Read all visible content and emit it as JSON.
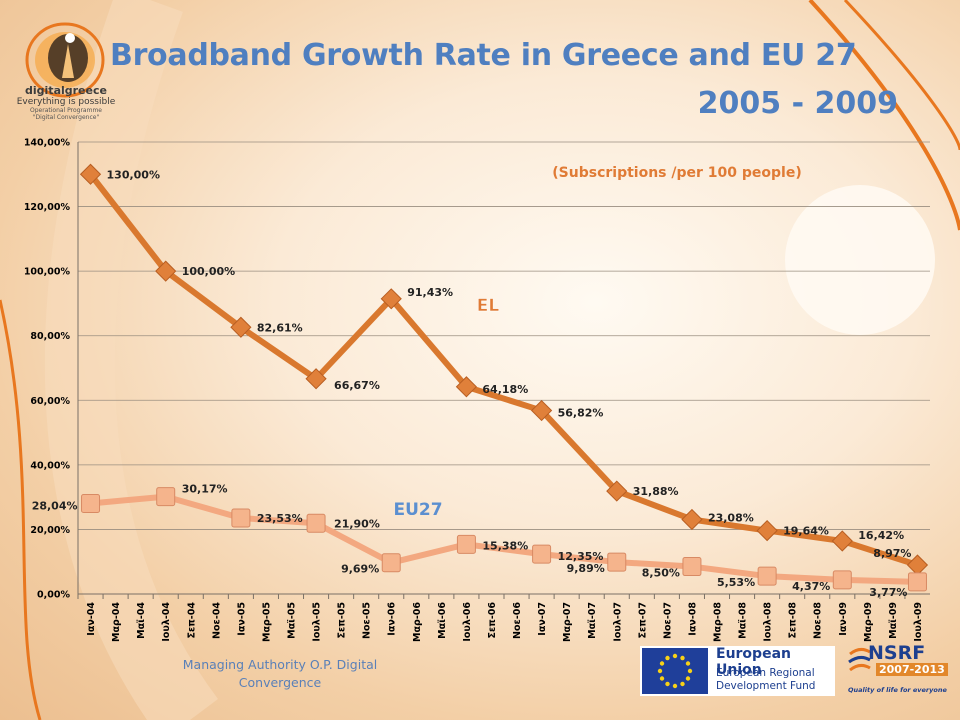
{
  "header": {
    "title_line1": "Broadband Growth Rate in Greece and EU 27",
    "title_line2": "2005 - 2009",
    "title_color": "#4f7fc0"
  },
  "logo": {
    "brand": "digitalgreece",
    "tagline": "Everything is possible",
    "programme_line1": "Operational Programme",
    "programme_line2": "\"Digital Convergence\""
  },
  "footer": {
    "authority_line1": "Managing Authority O.P. Digital",
    "authority_line2": "Convergence",
    "eu_line1": "European Union",
    "eu_line2a": "European Regional",
    "eu_line2b": "Development Fund",
    "nsrf": "NSRF",
    "nsrf_years": "2007-2013",
    "nsrf_tagline": "Quality of life for everyone"
  },
  "chart_data": {
    "type": "line",
    "subtitle": "(Subscriptions /per 100 people)",
    "ylim": [
      0,
      140
    ],
    "y_ticks": [
      0,
      20,
      40,
      60,
      80,
      100,
      120,
      140
    ],
    "y_tick_labels": [
      "0,00%",
      "20,00%",
      "40,00%",
      "60,00%",
      "80,00%",
      "100,00%",
      "120,00%",
      "140,00%"
    ],
    "grid": true,
    "categories": [
      "Ιαν-04",
      "Μαρ-04",
      "Μαϊ-04",
      "Ιουλ-04",
      "Σεπ-04",
      "Νοε-04",
      "Ιαν-05",
      "Μαρ-05",
      "Μαϊ-05",
      "Ιουλ-05",
      "Σεπ-05",
      "Νοε-05",
      "Ιαν-06",
      "Μαρ-06",
      "Μαϊ-06",
      "Ιουλ-06",
      "Σεπ-06",
      "Νοε-06",
      "Ιαν-07",
      "Μαρ-07",
      "Μαϊ-07",
      "Ιουλ-07",
      "Σεπ-07",
      "Νοε-07",
      "Ιαν-08",
      "Μαρ-08",
      "Μαϊ-08",
      "Ιουλ-08",
      "Σεπ-08",
      "Νοε-08",
      "Ιαν-09",
      "Μαρ-09",
      "Μαϊ-09",
      "Ιουλ-09"
    ],
    "series": [
      {
        "name": "EL",
        "color": "#d9782e",
        "marker_color": "#e0803a",
        "points": [
          {
            "index": 0,
            "value": 130.0,
            "label": "130,00%"
          },
          {
            "index": 3,
            "value": 100.0,
            "label": "100,00%"
          },
          {
            "index": 6,
            "value": 82.61,
            "label": "82,61%"
          },
          {
            "index": 9,
            "value": 66.67,
            "label": "66,67%"
          },
          {
            "index": 12,
            "value": 91.43,
            "label": "91,43%"
          },
          {
            "index": 15,
            "value": 64.18,
            "label": "64,18%"
          },
          {
            "index": 18,
            "value": 56.82,
            "label": "56,82%"
          },
          {
            "index": 21,
            "value": 31.88,
            "label": "31,88%"
          },
          {
            "index": 24,
            "value": 23.08,
            "label": "23,08%"
          },
          {
            "index": 27,
            "value": 19.64,
            "label": "19,64%"
          },
          {
            "index": 30,
            "value": 16.42,
            "label": "16,42%"
          },
          {
            "index": 33,
            "value": 8.97,
            "label": "8,97%"
          }
        ]
      },
      {
        "name": "EU27",
        "color": "#f3a880",
        "marker_color": "#f5b48c",
        "points": [
          {
            "index": 0,
            "value": 28.04,
            "label": "28,04%"
          },
          {
            "index": 3,
            "value": 30.17,
            "label": "30,17%"
          },
          {
            "index": 6,
            "value": 23.53,
            "label": "23,53%"
          },
          {
            "index": 9,
            "value": 21.9,
            "label": "21,90%"
          },
          {
            "index": 12,
            "value": 9.69,
            "label": "9,69%"
          },
          {
            "index": 15,
            "value": 15.38,
            "label": "15,38%"
          },
          {
            "index": 18,
            "value": 12.35,
            "label": "12,35%"
          },
          {
            "index": 21,
            "value": 9.89,
            "label": "9,89%"
          },
          {
            "index": 24,
            "value": 8.5,
            "label": "8,50%"
          },
          {
            "index": 27,
            "value": 5.53,
            "label": "5,53%"
          },
          {
            "index": 30,
            "value": 4.37,
            "label": "4,37%"
          },
          {
            "index": 33,
            "value": 3.77,
            "label": "3,77%"
          }
        ]
      }
    ],
    "series_label_colors": {
      "EL": "#e07b35",
      "EU27": "#5b8fd0"
    },
    "subtitle_color": "#e07b35"
  }
}
